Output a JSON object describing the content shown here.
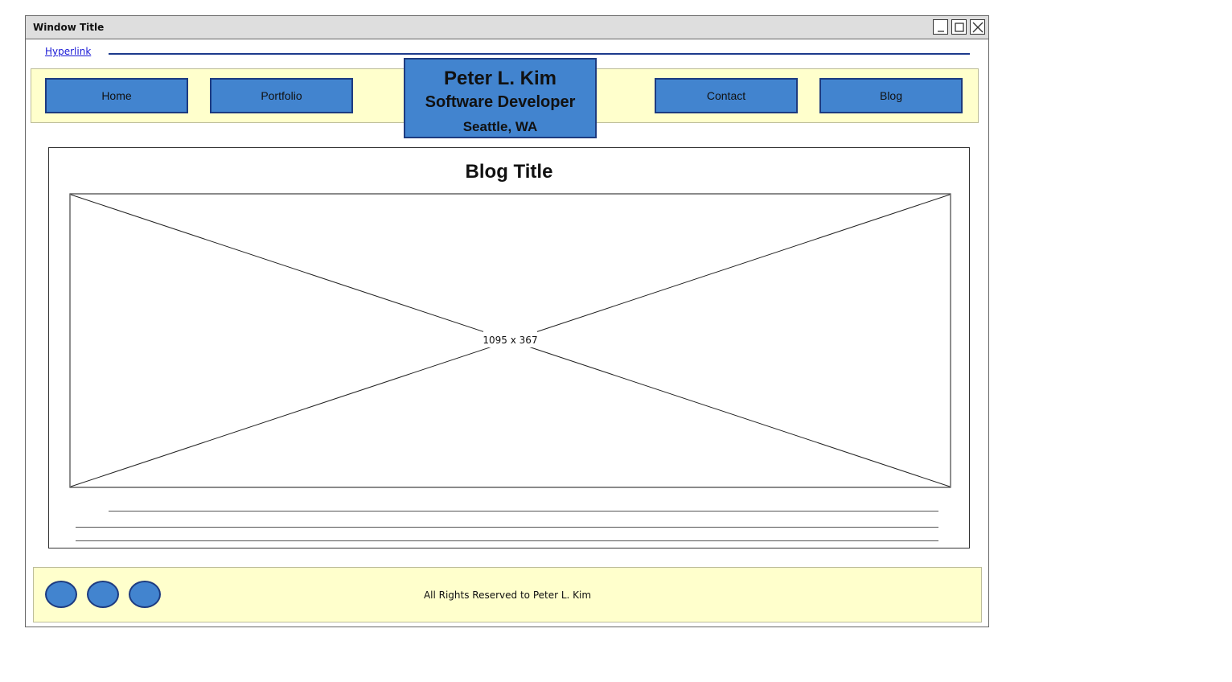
{
  "window": {
    "title": "Window Title",
    "controls": [
      "minimize-icon",
      "maximize-icon",
      "close-icon"
    ]
  },
  "header": {
    "hyperlink": "Hyperlink",
    "nav": {
      "home": "Home",
      "portfolio": "Portfolio",
      "contact": "Contact",
      "blog": "Blog"
    },
    "identity": {
      "name": "Peter L. Kim",
      "role": "Software Developer",
      "location": "Seattle, WA"
    }
  },
  "main": {
    "blog_title": "Blog Title",
    "image_placeholder": "1095 x 367"
  },
  "footer": {
    "social_icons": [
      "social-icon",
      "social-icon",
      "social-icon"
    ],
    "copyright": "All Rights Reserved to Peter L. Kim"
  },
  "colors": {
    "accent": "#4284cf",
    "accent_border": "#1d3b80",
    "bar_background": "#ffffcc",
    "titlebar": "#dedede",
    "link": "#1a1ad6"
  }
}
